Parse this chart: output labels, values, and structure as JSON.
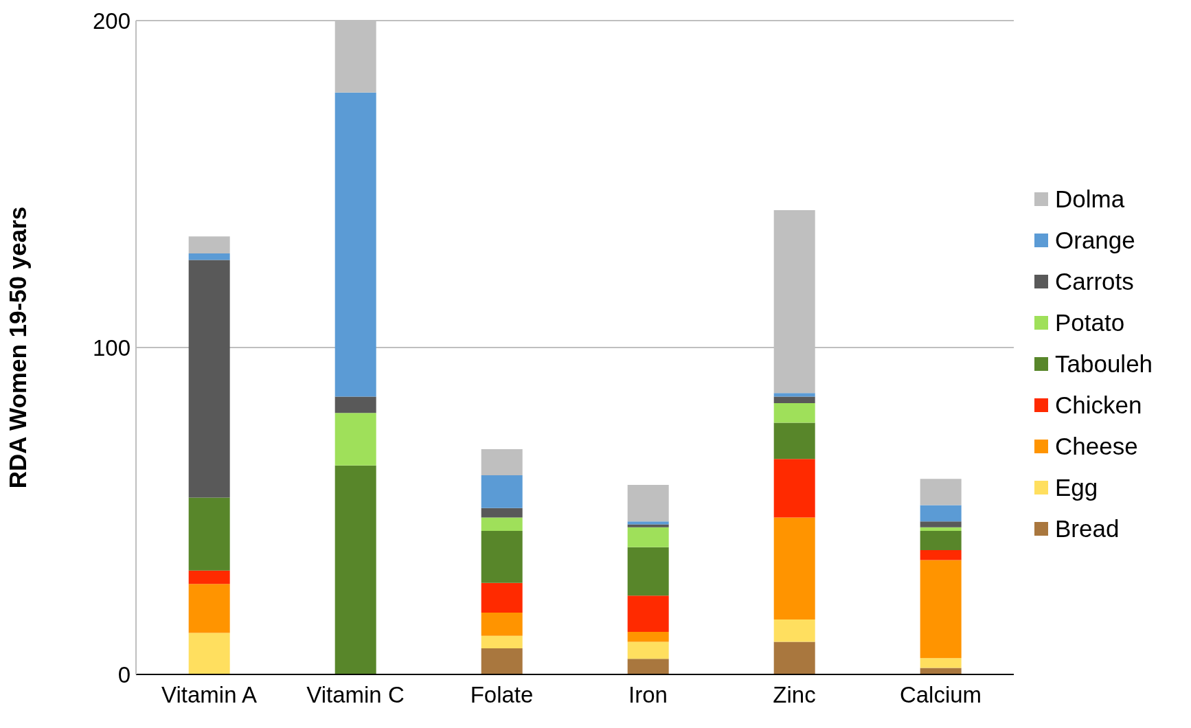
{
  "chart_data": {
    "type": "bar",
    "stacked": true,
    "ylabel": "RDA Women 19-50 years",
    "categories": [
      "Vitamin A",
      "Vitamin C",
      "Folate",
      "Iron",
      "Zinc",
      "Calcium"
    ],
    "series": [
      {
        "name": "Bread",
        "color": "#a9773e",
        "values": [
          0,
          0,
          8,
          4.8,
          10,
          2
        ]
      },
      {
        "name": "Egg",
        "color": "#ffdf5f",
        "values": [
          12.7,
          0,
          3.8,
          5.2,
          6.8,
          3
        ]
      },
      {
        "name": "Cheese",
        "color": "#ff9400",
        "values": [
          15,
          0,
          7.1,
          3,
          31.2,
          30
        ]
      },
      {
        "name": "Chicken",
        "color": "#ff2a00",
        "values": [
          4.1,
          0,
          9.1,
          11.1,
          17.9,
          3
        ]
      },
      {
        "name": "Tabouleh",
        "color": "#58862a",
        "values": [
          22.3,
          63.9,
          15.9,
          14.8,
          11.1,
          5.9
        ]
      },
      {
        "name": "Potato",
        "color": "#9fe05a",
        "values": [
          0,
          16.1,
          4.1,
          6.1,
          6,
          1.1
        ]
      },
      {
        "name": "Carrots",
        "color": "#595959",
        "values": [
          72.7,
          5,
          2.9,
          0.9,
          2,
          1.8
        ]
      },
      {
        "name": "Orange",
        "color": "#5b9bd5",
        "values": [
          2,
          93,
          10,
          0.9,
          1.1,
          5
        ]
      },
      {
        "name": "Dolma",
        "color": "#bfbfbf",
        "values": [
          5.2,
          22,
          8,
          11.2,
          55.9,
          8
        ]
      }
    ],
    "ylim": [
      0,
      200
    ],
    "yticks": [
      0,
      100,
      200
    ],
    "grid": "y",
    "legend": "right"
  }
}
